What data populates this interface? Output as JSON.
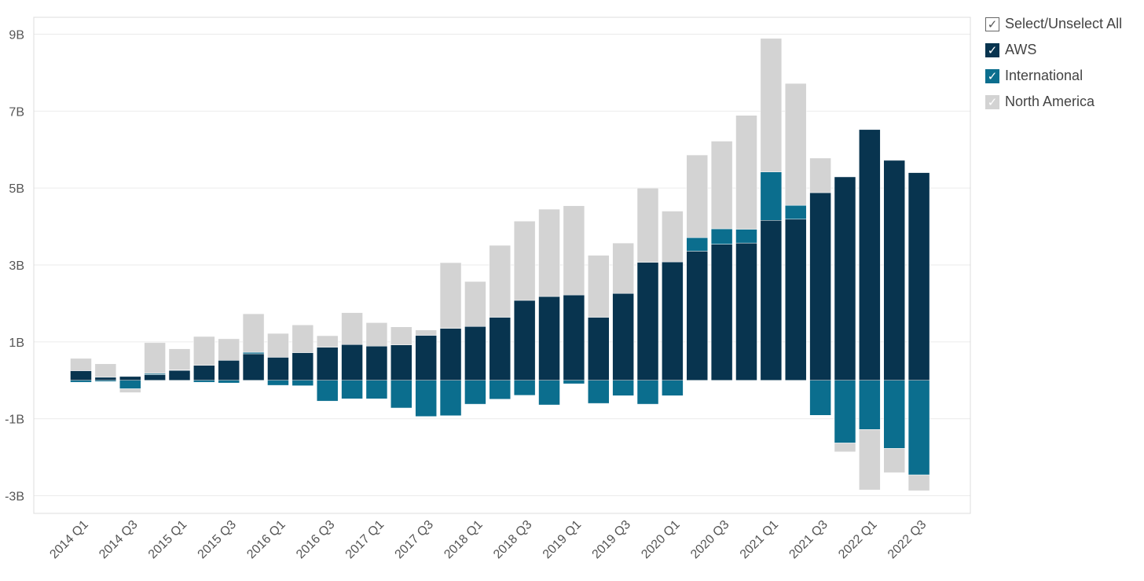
{
  "legend": {
    "select_all": "Select/Unselect All",
    "items": [
      {
        "label": "AWS",
        "color": "#08344F"
      },
      {
        "label": "International",
        "color": "#0B6E8E"
      },
      {
        "label": "North America",
        "color": "#D3D3D3"
      }
    ],
    "check_glyph": "✓"
  },
  "chart_data": {
    "type": "bar",
    "stacked": true,
    "ylim": [
      -3.0,
      9.0
    ],
    "yticks": [
      9,
      7,
      5,
      3,
      1,
      -1,
      -3
    ],
    "ytick_labels": [
      "9B",
      "7B",
      "5B",
      "3B",
      "1B",
      "-1B",
      "-3B"
    ],
    "grid": true,
    "legend_position": "right",
    "categories": [
      "2014 Q1",
      "2014 Q2",
      "2014 Q3",
      "2014 Q4",
      "2015 Q1",
      "2015 Q2",
      "2015 Q3",
      "2015 Q4",
      "2016 Q1",
      "2016 Q2",
      "2016 Q3",
      "2016 Q4",
      "2017 Q1",
      "2017 Q2",
      "2017 Q3",
      "2017 Q4",
      "2018 Q1",
      "2018 Q2",
      "2018 Q3",
      "2018 Q4",
      "2019 Q1",
      "2019 Q2",
      "2019 Q3",
      "2019 Q4",
      "2020 Q1",
      "2020 Q2",
      "2020 Q3",
      "2020 Q4",
      "2021 Q1",
      "2021 Q2",
      "2021 Q3",
      "2021 Q4",
      "2022 Q1",
      "2022 Q2",
      "2022 Q3"
    ],
    "xtick_labels": [
      "2014 Q1",
      "2014 Q3",
      "2015 Q1",
      "2015 Q3",
      "2016 Q1",
      "2016 Q3",
      "2017 Q1",
      "2017 Q3",
      "2018 Q1",
      "2018 Q3",
      "2019 Q1",
      "2019 Q3",
      "2020 Q1",
      "2020 Q3",
      "2021 Q1",
      "2021 Q3",
      "2022 Q1",
      "2022 Q3"
    ],
    "series": [
      {
        "name": "AWS",
        "color": "#08344F",
        "values": [
          0.25,
          0.08,
          0.1,
          0.15,
          0.26,
          0.39,
          0.52,
          0.69,
          0.6,
          0.72,
          0.86,
          0.93,
          0.89,
          0.92,
          1.17,
          1.35,
          1.4,
          1.64,
          2.08,
          2.18,
          2.22,
          1.64,
          2.26,
          3.07,
          3.08,
          3.36,
          3.54,
          3.57,
          4.16,
          4.19,
          4.88,
          5.29,
          6.52,
          5.72,
          5.4
        ]
      },
      {
        "name": "International",
        "color": "#0B6E8E",
        "values": [
          -0.05,
          -0.03,
          -0.22,
          0.03,
          0.01,
          -0.05,
          -0.07,
          0.04,
          -0.13,
          -0.14,
          -0.54,
          -0.48,
          -0.48,
          -0.72,
          -0.94,
          -0.92,
          -0.62,
          -0.49,
          -0.39,
          -0.64,
          -0.09,
          -0.6,
          -0.4,
          -0.62,
          -0.4,
          0.35,
          0.4,
          0.36,
          1.26,
          0.36,
          -0.91,
          -1.63,
          -1.28,
          -1.77,
          -2.46
        ]
      },
      {
        "name": "North America",
        "color": "#D3D3D3",
        "values": [
          0.32,
          0.35,
          -0.1,
          0.8,
          0.55,
          0.75,
          0.56,
          1.0,
          0.62,
          0.72,
          0.3,
          0.83,
          0.61,
          0.47,
          0.14,
          1.71,
          1.17,
          1.87,
          2.06,
          2.27,
          2.32,
          1.61,
          1.31,
          1.93,
          1.32,
          2.15,
          2.28,
          2.96,
          3.47,
          3.17,
          0.9,
          -0.23,
          -1.57,
          -0.63,
          -0.41
        ]
      }
    ]
  }
}
